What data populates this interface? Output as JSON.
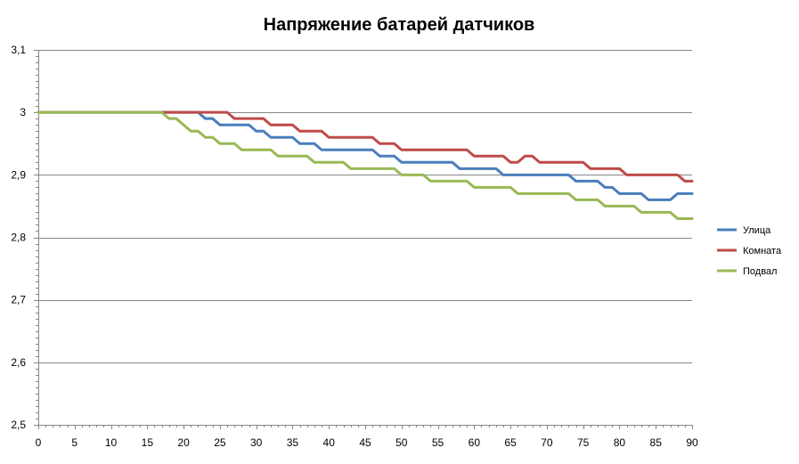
{
  "chart_data": {
    "type": "line",
    "title": "Напряжение батарей датчиков",
    "xlabel": "",
    "ylabel": "",
    "xlim": [
      0,
      90
    ],
    "ylim": [
      2.5,
      3.1
    ],
    "x_ticks": [
      0,
      5,
      10,
      15,
      20,
      25,
      30,
      35,
      40,
      45,
      50,
      55,
      60,
      65,
      70,
      75,
      80,
      85,
      90
    ],
    "x_tick_labels": [
      "0",
      "5",
      "10",
      "15",
      "20",
      "25",
      "30",
      "35",
      "40",
      "45",
      "50",
      "55",
      "60",
      "65",
      "70",
      "75",
      "80",
      "85",
      "90"
    ],
    "y_ticks": [
      2.5,
      2.6,
      2.7,
      2.8,
      2.9,
      3.0,
      3.1
    ],
    "y_tick_labels": [
      "2,5",
      "2,6",
      "2,7",
      "2,8",
      "2,9",
      "3",
      "3,1"
    ],
    "grid": "horizontal",
    "legend_position": "right",
    "x": [
      0,
      1,
      2,
      3,
      4,
      5,
      6,
      7,
      8,
      9,
      10,
      11,
      12,
      13,
      14,
      15,
      16,
      17,
      18,
      19,
      20,
      21,
      22,
      23,
      24,
      25,
      26,
      27,
      28,
      29,
      30,
      31,
      32,
      33,
      34,
      35,
      36,
      37,
      38,
      39,
      40,
      41,
      42,
      43,
      44,
      45,
      46,
      47,
      48,
      49,
      50,
      51,
      52,
      53,
      54,
      55,
      56,
      57,
      58,
      59,
      60,
      61,
      62,
      63,
      64,
      65,
      66,
      67,
      68,
      69,
      70,
      71,
      72,
      73,
      74,
      75,
      76,
      77,
      78,
      79,
      80,
      81,
      82,
      83,
      84,
      85,
      86,
      87,
      88,
      89,
      90
    ],
    "series": [
      {
        "name": "Улица",
        "color": "#4a7ebb",
        "values": [
          3.0,
          3.0,
          3.0,
          3.0,
          3.0,
          3.0,
          3.0,
          3.0,
          3.0,
          3.0,
          3.0,
          3.0,
          3.0,
          3.0,
          3.0,
          3.0,
          3.0,
          3.0,
          3.0,
          3.0,
          3.0,
          3.0,
          3.0,
          2.99,
          2.99,
          2.98,
          2.98,
          2.98,
          2.98,
          2.98,
          2.97,
          2.97,
          2.96,
          2.96,
          2.96,
          2.96,
          2.95,
          2.95,
          2.95,
          2.94,
          2.94,
          2.94,
          2.94,
          2.94,
          2.94,
          2.94,
          2.94,
          2.93,
          2.93,
          2.93,
          2.92,
          2.92,
          2.92,
          2.92,
          2.92,
          2.92,
          2.92,
          2.92,
          2.91,
          2.91,
          2.91,
          2.91,
          2.91,
          2.91,
          2.9,
          2.9,
          2.9,
          2.9,
          2.9,
          2.9,
          2.9,
          2.9,
          2.9,
          2.9,
          2.89,
          2.89,
          2.89,
          2.89,
          2.88,
          2.88,
          2.87,
          2.87,
          2.87,
          2.87,
          2.86,
          2.86,
          2.86,
          2.86,
          2.87,
          2.87,
          2.87
        ]
      },
      {
        "name": "Комната",
        "color": "#be4b48",
        "values": [
          3.0,
          3.0,
          3.0,
          3.0,
          3.0,
          3.0,
          3.0,
          3.0,
          3.0,
          3.0,
          3.0,
          3.0,
          3.0,
          3.0,
          3.0,
          3.0,
          3.0,
          3.0,
          3.0,
          3.0,
          3.0,
          3.0,
          3.0,
          3.0,
          3.0,
          3.0,
          3.0,
          2.99,
          2.99,
          2.99,
          2.99,
          2.99,
          2.98,
          2.98,
          2.98,
          2.98,
          2.97,
          2.97,
          2.97,
          2.97,
          2.96,
          2.96,
          2.96,
          2.96,
          2.96,
          2.96,
          2.96,
          2.95,
          2.95,
          2.95,
          2.94,
          2.94,
          2.94,
          2.94,
          2.94,
          2.94,
          2.94,
          2.94,
          2.94,
          2.94,
          2.93,
          2.93,
          2.93,
          2.93,
          2.93,
          2.92,
          2.92,
          2.93,
          2.93,
          2.92,
          2.92,
          2.92,
          2.92,
          2.92,
          2.92,
          2.92,
          2.91,
          2.91,
          2.91,
          2.91,
          2.91,
          2.9,
          2.9,
          2.9,
          2.9,
          2.9,
          2.9,
          2.9,
          2.9,
          2.89,
          2.89
        ]
      },
      {
        "name": "Подвал",
        "color": "#98b954",
        "values": [
          3.0,
          3.0,
          3.0,
          3.0,
          3.0,
          3.0,
          3.0,
          3.0,
          3.0,
          3.0,
          3.0,
          3.0,
          3.0,
          3.0,
          3.0,
          3.0,
          3.0,
          3.0,
          2.99,
          2.99,
          2.98,
          2.97,
          2.97,
          2.96,
          2.96,
          2.95,
          2.95,
          2.95,
          2.94,
          2.94,
          2.94,
          2.94,
          2.94,
          2.93,
          2.93,
          2.93,
          2.93,
          2.93,
          2.92,
          2.92,
          2.92,
          2.92,
          2.92,
          2.91,
          2.91,
          2.91,
          2.91,
          2.91,
          2.91,
          2.91,
          2.9,
          2.9,
          2.9,
          2.9,
          2.89,
          2.89,
          2.89,
          2.89,
          2.89,
          2.89,
          2.88,
          2.88,
          2.88,
          2.88,
          2.88,
          2.88,
          2.87,
          2.87,
          2.87,
          2.87,
          2.87,
          2.87,
          2.87,
          2.87,
          2.86,
          2.86,
          2.86,
          2.86,
          2.85,
          2.85,
          2.85,
          2.85,
          2.85,
          2.84,
          2.84,
          2.84,
          2.84,
          2.84,
          2.83,
          2.83,
          2.83
        ]
      }
    ]
  }
}
